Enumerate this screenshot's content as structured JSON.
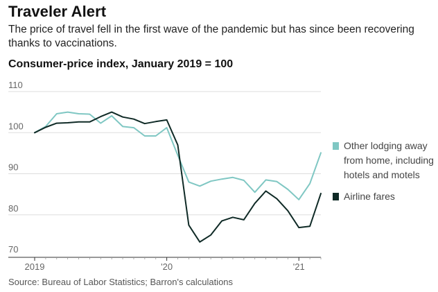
{
  "title": "Traveler Alert",
  "subtitle": "The price of travel fell in the first wave of the pandemic but has since been recovering thanks to vaccinations.",
  "source": "Source: Bureau of Labor Statistics; Barron's calculations",
  "chart_data": {
    "type": "line",
    "title": "Consumer-price index, January 2019 = 100",
    "xlabel": "",
    "ylabel": "",
    "ylim": [
      70,
      110
    ],
    "y_ticks": [
      70,
      80,
      90,
      100,
      110
    ],
    "x_ticks": [
      {
        "label": "2019",
        "index": 0
      },
      {
        "label": "'20",
        "index": 12
      },
      {
        "label": "'21",
        "index": 24
      }
    ],
    "grid": true,
    "colors": {
      "lodging": "#7fc7c3",
      "airline": "#0f2a26",
      "grid": "#dddddd",
      "axis": "#333333"
    },
    "series": [
      {
        "name": "Other lodging away from home, including hotels and motels",
        "legend_lines": [
          "Other lodging away",
          "from home, including",
          "hotels and motels"
        ],
        "color": "#7fc7c3",
        "values": [
          100,
          101.5,
          104.6,
          105,
          104.6,
          104.5,
          102.3,
          104.1,
          101.5,
          101.2,
          99.2,
          99.2,
          101.2,
          94.5,
          88,
          87,
          88.2,
          88.7,
          89.1,
          88.4,
          85.5,
          88.5,
          88.1,
          86.2,
          83.7,
          87.6,
          95.1
        ]
      },
      {
        "name": "Airline fares",
        "legend_lines": [
          "Airline fares"
        ],
        "color": "#0f2a26",
        "values": [
          100,
          101.3,
          102.3,
          102.4,
          102.6,
          102.6,
          103.9,
          105,
          103.8,
          103.3,
          102.2,
          102.7,
          103.1,
          97,
          77.5,
          73.4,
          75.1,
          78.5,
          79.4,
          78.8,
          82.8,
          85.8,
          83.9,
          81,
          76.9,
          77.2,
          85.2
        ]
      }
    ]
  }
}
